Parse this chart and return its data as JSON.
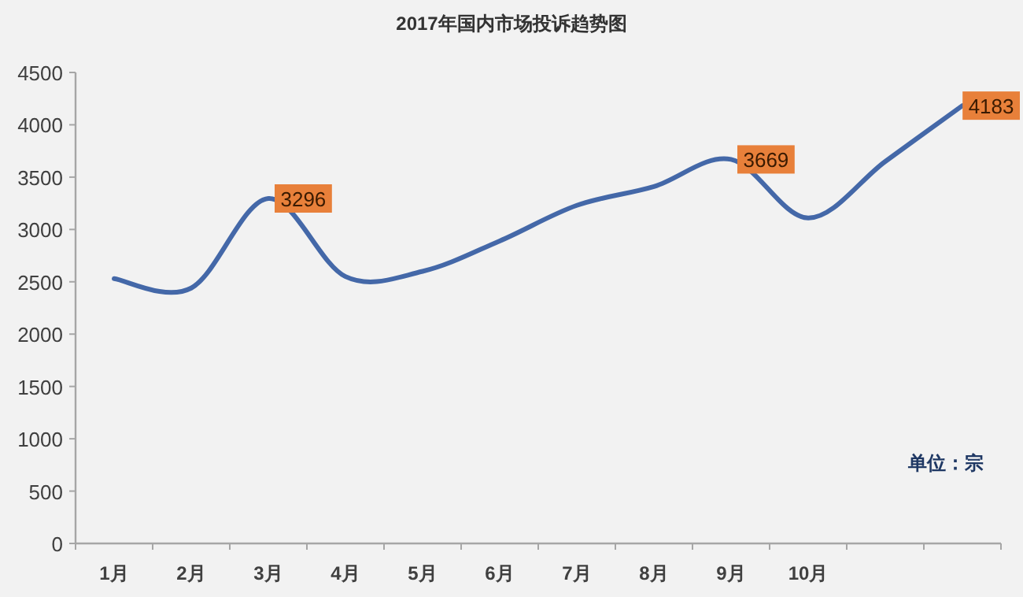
{
  "chart_data": {
    "type": "line",
    "title": "2017年国内市场投诉趋势图",
    "categories": [
      "1月",
      "2月",
      "3月",
      "4月",
      "5月",
      "6月",
      "7月",
      "8月",
      "9月",
      "10月",
      null,
      null
    ],
    "values": [
      2530,
      2440,
      3296,
      2550,
      2600,
      2890,
      3230,
      3410,
      3669,
      3110,
      3650,
      4183
    ],
    "value_labels": [
      null,
      null,
      "3296",
      null,
      null,
      null,
      null,
      null,
      "3669",
      null,
      null,
      "4183"
    ],
    "color": "#4468a8",
    "ylim": [
      0,
      4500
    ],
    "yticks": [
      0,
      500,
      1000,
      1500,
      2000,
      2500,
      3000,
      3500,
      4000,
      4500
    ],
    "grid": false,
    "marker": "none",
    "line_style": "solid",
    "annotations": [
      "单位：宗"
    ]
  }
}
